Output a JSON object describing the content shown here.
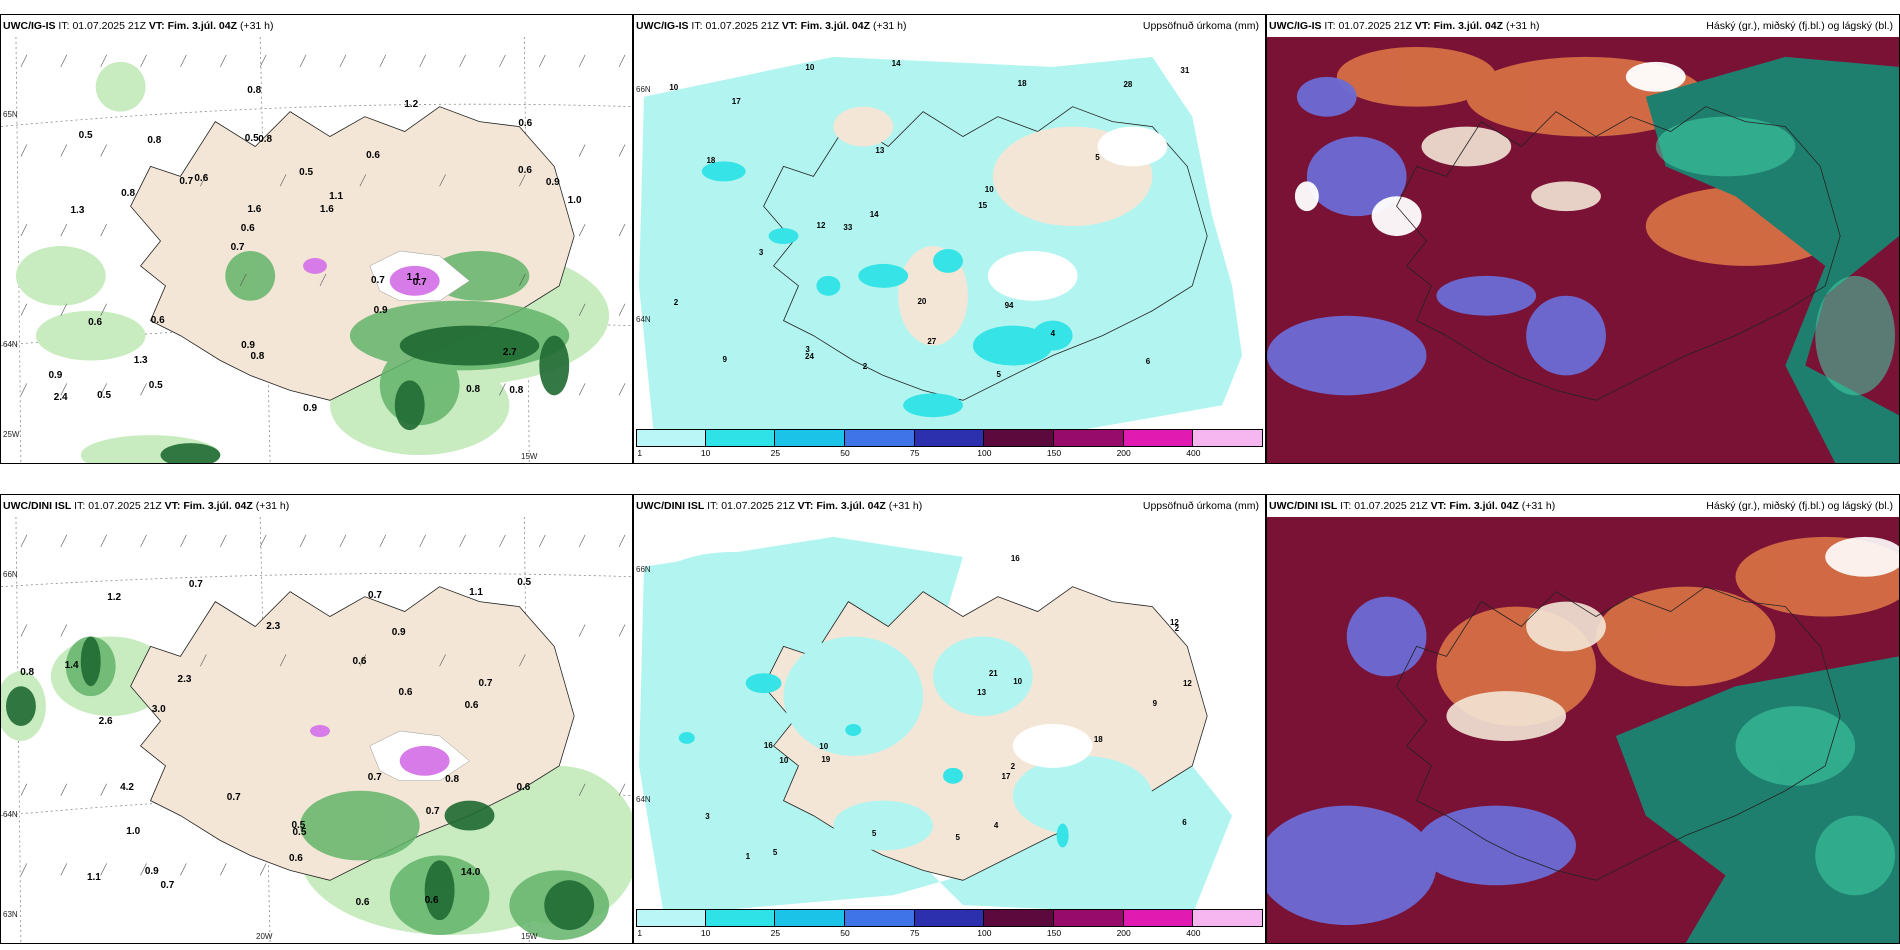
{
  "colors": {
    "land": "#f3e6d6",
    "precip_light": "#b2f5f0",
    "precip_cyan": "#36e3e6",
    "snow_pink": "#d77be8",
    "green_light": "#c8ecc0",
    "green_mid": "#63b46a",
    "green_dark": "#1f6a33",
    "cloud_maroon": "#7a1236",
    "cloud_blue": "#6c6cd6",
    "cloud_teal": "#1f7f6f",
    "cloud_orange": "#e07a46"
  },
  "rows": [
    {
      "panel1": {
        "model": "UWC/IG-IS",
        "it_prefix": "IT:",
        "it": "01.07.2025 21Z",
        "vt_prefix": "VT:",
        "vt": "Fim. 3.júl. 04Z",
        "lead": "(+31 h)",
        "lat_labels": [
          "65N",
          "64N",
          "63N"
        ],
        "lon_labels": [
          "25W",
          "15W"
        ],
        "values": [
          "0.8",
          "1.3",
          "0.6",
          "0.7",
          "0.6",
          "0.5",
          "0.5",
          "0.5",
          "0.6",
          "0.6",
          "0.9",
          "1.3",
          "0.8",
          "1.1",
          "0.7",
          "0.5",
          "0.8",
          "1.0",
          "0.7",
          "0.6",
          "0.6",
          "0.9",
          "1.6",
          "0.8",
          "1.2",
          "0.6",
          "0.8",
          "2.7",
          "1.1",
          "0.9",
          "0.7",
          "0.8",
          "0.9",
          "0.5",
          "0.9",
          "1.6",
          "2.4",
          "0.8"
        ]
      },
      "panel2": {
        "model": "UWC/IG-IS",
        "it_prefix": "IT:",
        "it": "01.07.2025 21Z",
        "vt_prefix": "VT:",
        "vt": "Fim. 3.júl. 04Z",
        "lead": "(+31 h)",
        "right_title": "Uppsöfnuð úrkoma (mm)",
        "lat_labels": [
          "66N",
          "64N"
        ],
        "values": [
          "2",
          "5",
          "3",
          "4",
          "10",
          "17",
          "12",
          "6",
          "14",
          "13",
          "28",
          "27",
          "14",
          "20",
          "18",
          "15",
          "18",
          "24",
          "33",
          "10",
          "94",
          "31",
          "10",
          "9",
          "5",
          "3",
          "2"
        ]
      },
      "panel3": {
        "model": "UWC/IG-IS",
        "it_prefix": "IT:",
        "it": "01.07.2025 21Z",
        "vt_prefix": "VT:",
        "vt": "Fim. 3.júl. 04Z",
        "lead": "(+31 h)",
        "right_title": "Háský (gr.), miðský (fj.bl.) og lágský (bl.)"
      }
    },
    {
      "panel1": {
        "model": "UWC/DINI ISL",
        "it_prefix": "IT:",
        "it": "01.07.2025 21Z",
        "vt_prefix": "VT:",
        "vt": "Fim. 3.júl. 04Z",
        "lead": "(+31 h)",
        "lat_labels": [
          "66N",
          "64N",
          "63N"
        ],
        "lon_labels": [
          "20W",
          "15W"
        ],
        "values": [
          "0.6",
          "0.6",
          "0.5",
          "1.1",
          "0.5",
          "2.3",
          "0.7",
          "0.9",
          "0.6",
          "0.6",
          "0.7",
          "1.1",
          "0.8",
          "0.6",
          "0.7",
          "1.2",
          "1.0",
          "0.9",
          "0.7",
          "2.3",
          "1.4",
          "0.8",
          "14.0",
          "2.6",
          "0.5",
          "0.6",
          "0.7",
          "0.7",
          "4.2",
          "3.0",
          "0.6",
          "0.7"
        ]
      },
      "panel2": {
        "model": "UWC/DINI ISL",
        "it_prefix": "IT:",
        "it": "01.07.2025 21Z",
        "vt_prefix": "VT:",
        "vt": "Fim. 3.júl. 04Z",
        "lead": "(+31 h)",
        "right_title": "Uppsöfnuð úrkoma (mm)",
        "lat_labels": [
          "66N",
          "64N"
        ],
        "values": [
          "2",
          "3",
          "5",
          "10",
          "12",
          "18",
          "16",
          "19",
          "21",
          "6",
          "5",
          "10",
          "12",
          "13",
          "16",
          "9",
          "10",
          "17",
          "5",
          "4",
          "2",
          "1"
        ]
      },
      "panel3": {
        "model": "UWC/DINI ISL",
        "it_prefix": "IT:",
        "it": "01.07.2025 21Z",
        "vt_prefix": "VT:",
        "vt": "Fim. 3.júl. 04Z",
        "lead": "(+31 h)",
        "right_title": "Háský (gr.), miðský (fj.bl.) og lágský (bl.)"
      }
    }
  ],
  "colorbar": {
    "ticks": [
      "1",
      "10",
      "25",
      "50",
      "75",
      "100",
      "150",
      "200",
      "400"
    ],
    "swatches": [
      "#b9f6f5",
      "#2fe2e7",
      "#1bc3e8",
      "#3f73e8",
      "#2c2fae",
      "#5c0a3d",
      "#970c6b",
      "#e11ab2",
      "#f6b6f0"
    ]
  }
}
